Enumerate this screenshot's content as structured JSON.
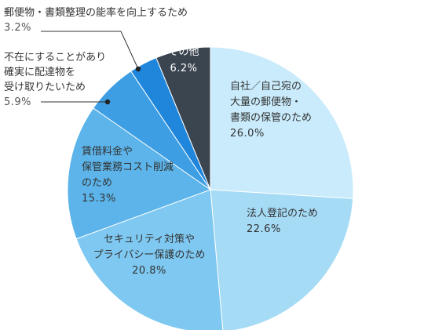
{
  "chart_data": {
    "type": "pie",
    "start": "12 o'clock",
    "direction": "clockwise",
    "slices": [
      {
        "label_lines": [
          "自社／自己宛の",
          "大量の郵便物・",
          "書類の保管のため"
        ],
        "value": 26.0,
        "value_text": "26.0%",
        "color": "#c9ebfb",
        "text_color": "#333333"
      },
      {
        "label_lines": [
          "法人登記のため"
        ],
        "value": 22.6,
        "value_text": "22.6%",
        "color": "#a6dbf6",
        "text_color": "#333333"
      },
      {
        "label_lines": [
          "セキュリティ対策や",
          "プライバシー保護のため"
        ],
        "value": 20.8,
        "value_text": "20.8%",
        "color": "#7ec8f1",
        "text_color": "#333333"
      },
      {
        "label_lines": [
          "賃借料金や",
          "保管業務コスト削減",
          "のため"
        ],
        "value": 15.3,
        "value_text": "15.3%",
        "color": "#5cb4ea",
        "text_color": "#333333"
      },
      {
        "label_lines": [
          "不在にすることがあり",
          "確実に配達物を",
          "受け取りたいため"
        ],
        "value": 5.9,
        "value_text": "5.9%",
        "color": "#3d9ee4",
        "text_color": "#333333",
        "external": true
      },
      {
        "label_lines": [
          "郵便物・書類整理の能率を向上するため"
        ],
        "value": 3.2,
        "value_text": "3.2%",
        "color": "#1f86dc",
        "text_color": "#333333",
        "external": true
      },
      {
        "label_lines": [
          "その他"
        ],
        "value": 6.2,
        "value_text": "6.2%",
        "color": "#3b4550",
        "text_color": "#ffffff"
      }
    ]
  }
}
